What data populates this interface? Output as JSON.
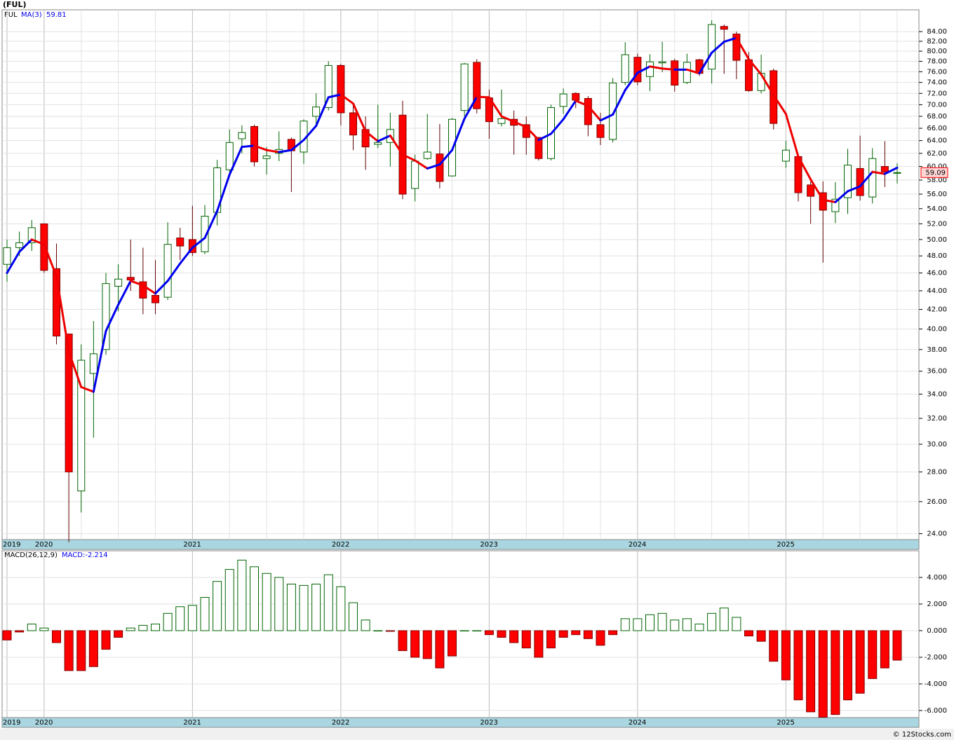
{
  "title": "(FUL)",
  "footer": "© 12Stocks.com",
  "chart_data": [
    {
      "type": "candlestick",
      "symbol": "FUL",
      "log_scale": true,
      "grid": true,
      "up_color": "#006400",
      "down_color": "#ff0000",
      "categories": [
        "2019",
        null,
        null,
        "2020",
        null,
        null,
        null,
        null,
        null,
        null,
        null,
        null,
        null,
        null,
        null,
        "2021",
        null,
        null,
        null,
        null,
        null,
        null,
        null,
        null,
        null,
        null,
        null,
        "2022",
        null,
        null,
        null,
        null,
        null,
        null,
        null,
        null,
        null,
        null,
        null,
        "2023",
        null,
        null,
        null,
        null,
        null,
        null,
        null,
        null,
        null,
        null,
        null,
        "2024",
        null,
        null,
        null,
        null,
        null,
        null,
        null,
        null,
        null,
        null,
        null,
        "2025",
        null,
        null,
        null,
        null,
        null,
        null,
        null,
        null,
        null
      ],
      "open": [
        47,
        49,
        49.6,
        52,
        46.5,
        39.5,
        26.7,
        35.8,
        38,
        44.5,
        45.5,
        45,
        43.5,
        43.3,
        50.2,
        50,
        48.5,
        53.5,
        59.5,
        64.3,
        66.3,
        61.2,
        62,
        64.2,
        62.2,
        68,
        69.5,
        77.2,
        68.6,
        65.8,
        63.4,
        63.7,
        68.2,
        56.8,
        61.2,
        61.9,
        58.6,
        69,
        77.8,
        71.2,
        66.8,
        67.5,
        66.6,
        64.5,
        61.2,
        69.7,
        72,
        71.1,
        66.6,
        64.2,
        74,
        78.8,
        75.1,
        77.7,
        78.1,
        74,
        78.3,
        76.5,
        85.1,
        83.5,
        78.3,
        72.5,
        76.2,
        60.8,
        61.5,
        57.3,
        56.2,
        53.6,
        55.5,
        59.7,
        55.6,
        60,
        59
      ],
      "high": [
        50,
        51,
        52.5,
        52,
        49.5,
        39.5,
        38.5,
        40.8,
        46,
        47,
        50,
        49,
        47.5,
        52.2,
        51.5,
        54.4,
        54.5,
        61,
        65.8,
        66.5,
        66.6,
        63,
        65.5,
        64.5,
        67.5,
        72,
        78,
        77.5,
        70,
        68,
        70,
        68.6,
        70.7,
        61.8,
        68.4,
        66.7,
        67.7,
        77.7,
        78.4,
        72.7,
        72.7,
        69,
        68,
        64.6,
        70,
        72.9,
        72.2,
        71.5,
        68.6,
        74.8,
        81.8,
        79.5,
        79.4,
        81.9,
        78.5,
        79.5,
        78.5,
        86.4,
        85.5,
        84,
        79.8,
        79.3,
        76.6,
        64,
        61.9,
        57.8,
        57.8,
        57.7,
        62.7,
        64.8,
        62.8,
        63.9,
        60.5
      ],
      "low": [
        45,
        48,
        48.6,
        46,
        38.5,
        23.5,
        25.3,
        30.5,
        37.5,
        41.8,
        44,
        41.5,
        41.5,
        43,
        47.5,
        48,
        48.2,
        51.8,
        59,
        62,
        60,
        58.8,
        60.8,
        56.3,
        60.4,
        66.3,
        69,
        66.5,
        62.5,
        59.5,
        62.8,
        60,
        55.3,
        55,
        61,
        56.8,
        58.5,
        68,
        68.5,
        64.3,
        66.3,
        61.8,
        61.8,
        60.9,
        60.9,
        68.4,
        69.4,
        64.7,
        63.3,
        63.7,
        73.5,
        73.5,
        72.4,
        75.9,
        72.3,
        73.7,
        75.2,
        73.8,
        75.6,
        74.6,
        72.3,
        72,
        65.8,
        59.8,
        55,
        52,
        47.2,
        52.1,
        53.3,
        55.1,
        54.7,
        57,
        57.5
      ],
      "close": [
        49,
        49.6,
        51.5,
        46.3,
        39.3,
        28,
        37,
        37.6,
        44.8,
        45.3,
        45.2,
        43.2,
        42.7,
        49.4,
        49.2,
        48.4,
        53,
        59.8,
        63.7,
        65.3,
        60.7,
        61.6,
        62.6,
        62.4,
        67.2,
        69.6,
        77.2,
        68.6,
        64.9,
        63,
        63.7,
        65.8,
        56,
        60.8,
        62.2,
        57.8,
        67.5,
        77.5,
        69.3,
        67.1,
        67.6,
        66.5,
        64.5,
        61.2,
        69.5,
        71.9,
        70.8,
        66.6,
        64.5,
        73.9,
        79.3,
        74.1,
        77.9,
        77.9,
        73.5,
        77.8,
        75.7,
        85.5,
        84.5,
        78.2,
        72.5,
        75.7,
        66.8,
        62.5,
        56.2,
        55.7,
        53.8,
        55.3,
        60.2,
        55.8,
        61.2,
        59.2,
        59.09
      ],
      "series": [
        {
          "name": "MA(3)",
          "up_color": "#0000ee",
          "down_color": "#ee0000",
          "values": [
            46,
            48.5,
            50,
            49.4,
            45.6,
            37.8,
            34.6,
            34.2,
            39.8,
            42.5,
            45.1,
            44.6,
            43.7,
            45.1,
            47.1,
            49,
            50.2,
            53.7,
            58.8,
            63,
            63.2,
            62.5,
            62.2,
            62.5,
            64.1,
            66.4,
            71.3,
            71.8,
            70.2,
            65.5,
            63.9,
            64.8,
            61.8,
            60.9,
            59.7,
            60.3,
            62.5,
            67.6,
            71.4,
            71.3,
            68,
            67.1,
            66.2,
            64.1,
            65.1,
            67.5,
            70.7,
            69.8,
            67.3,
            68.3,
            72.6,
            75.8,
            77,
            76.6,
            76.4,
            76.4,
            75.7,
            79.7,
            81.9,
            82.7,
            78.4,
            75.5,
            71.7,
            68.4,
            61.5,
            58.1,
            55.2,
            54.9,
            56.4,
            57.1,
            59.2,
            58.9,
            59.81
          ]
        }
      ],
      "ylim": [
        23.65,
        88.7
      ],
      "yticks": [
        {
          "value": 24,
          "label": "24.00"
        },
        {
          "value": 26,
          "label": "26.00"
        },
        {
          "value": 28,
          "label": "28.00"
        },
        {
          "value": 30,
          "label": "30.00"
        },
        {
          "value": 32,
          "label": "32.00"
        },
        {
          "value": 34,
          "label": "34.00"
        },
        {
          "value": 36,
          "label": "36.00"
        },
        {
          "value": 38,
          "label": "38.00"
        },
        {
          "value": 40,
          "label": "40.00"
        },
        {
          "value": 42,
          "label": "42.00"
        },
        {
          "value": 44,
          "label": "44.00"
        },
        {
          "value": 46,
          "label": "46.00"
        },
        {
          "value": 48,
          "label": "48.00"
        },
        {
          "value": 50,
          "label": "50.00"
        },
        {
          "value": 52,
          "label": "52.00"
        },
        {
          "value": 54,
          "label": "54.00"
        },
        {
          "value": 56,
          "label": "56.00"
        },
        {
          "value": 58,
          "label": "58.00"
        },
        {
          "value": 60,
          "label": "60.00"
        },
        {
          "value": 62,
          "label": "62.00"
        },
        {
          "value": 64,
          "label": "64.00"
        },
        {
          "value": 66,
          "label": "66.00"
        },
        {
          "value": 68,
          "label": "68.00"
        },
        {
          "value": 70,
          "label": "70.00"
        },
        {
          "value": 72,
          "label": "72.00"
        },
        {
          "value": 74,
          "label": "74.00"
        },
        {
          "value": 76,
          "label": "76.00"
        },
        {
          "value": 78,
          "label": "78.00"
        },
        {
          "value": 80,
          "label": "80.00"
        },
        {
          "value": 82,
          "label": "82.00"
        },
        {
          "value": 84,
          "label": "84.00"
        }
      ]
    },
    {
      "type": "macd",
      "name": "MACD(26,12,9)",
      "value_prefix": "MACD:",
      "grid": true,
      "up_color": "#006400",
      "down_color": "#ff0000",
      "values": [
        -0.7,
        -0.1,
        0.5,
        0.2,
        -0.9,
        -3.0,
        -3.0,
        -2.7,
        -1.4,
        -0.5,
        0.2,
        0.4,
        0.5,
        1.3,
        1.8,
        1.9,
        2.5,
        3.7,
        4.6,
        5.3,
        4.8,
        4.3,
        4.0,
        3.5,
        3.4,
        3.5,
        4.2,
        3.3,
        2.1,
        0.8,
        0.0,
        -0.05,
        -1.5,
        -2.0,
        -2.1,
        -2.8,
        -1.9,
        0.0,
        0.0,
        -0.3,
        -0.5,
        -0.9,
        -1.3,
        -2.0,
        -1.3,
        -0.5,
        -0.3,
        -0.6,
        -1.1,
        -0.3,
        0.9,
        0.9,
        1.2,
        1.3,
        0.8,
        0.9,
        0.5,
        1.3,
        1.7,
        1.0,
        -0.4,
        -0.8,
        -2.3,
        -3.7,
        -5.2,
        -6.1,
        -6.5,
        -6.3,
        -5.2,
        -4.7,
        -3.6,
        -2.8,
        -2.214
      ],
      "ylim": [
        -6.53,
        6.0
      ],
      "yticks": [
        {
          "value": 4,
          "label": "4.000"
        },
        {
          "value": 2,
          "label": "2.000"
        },
        {
          "value": 0,
          "label": "0.000"
        },
        {
          "value": -2,
          "label": "-2.000"
        },
        {
          "value": -4,
          "label": "-4.000"
        },
        {
          "value": -6,
          "label": "-6.000"
        }
      ]
    }
  ]
}
